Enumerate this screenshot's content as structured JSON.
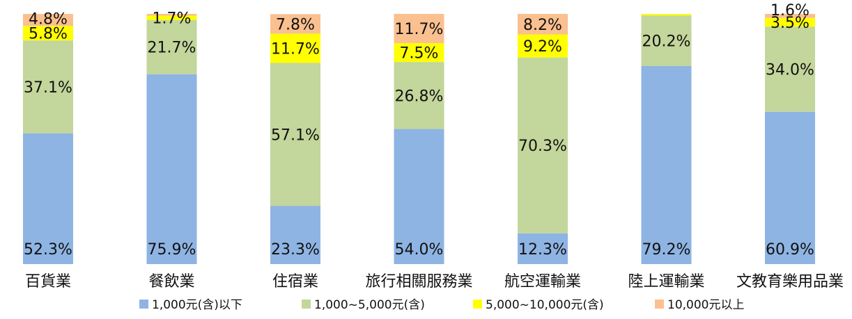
{
  "chart_data": {
    "type": "bar",
    "stacked": true,
    "percent_stacked": true,
    "categories": [
      "百貨業",
      "餐飲業",
      "住宿業",
      "旅行相關服務業",
      "航空運輸業",
      "陸上運輸業",
      "文教育樂用品業"
    ],
    "series": [
      {
        "name": "1,000元(含)以下",
        "color": "#8eb4e3",
        "values": [
          52.3,
          75.9,
          23.3,
          54.0,
          12.3,
          79.2,
          60.9
        ],
        "labels": [
          "52.3%",
          "75.9%",
          "23.3%",
          "54.0%",
          "12.3%",
          "79.2%",
          "60.9%"
        ]
      },
      {
        "name": "1,000~5,000元(含)",
        "color": "#c3d69b",
        "values": [
          37.1,
          21.7,
          57.1,
          26.8,
          70.3,
          20.2,
          34.0
        ],
        "labels": [
          "37.1%",
          "21.7%",
          "57.1%",
          "26.8%",
          "70.3%",
          "20.2%",
          "34.0%"
        ]
      },
      {
        "name": "5,000~10,000元(含)",
        "color": "#ffff00",
        "values": [
          5.8,
          1.7,
          11.7,
          7.5,
          9.2,
          0.6,
          3.5
        ],
        "labels": [
          "5.8%",
          "1.7%",
          "11.7%",
          "7.5%",
          "9.2%",
          "",
          "3.5%"
        ]
      },
      {
        "name": "10,000元以上",
        "color": "#fac090",
        "values": [
          4.8,
          0.7,
          7.8,
          11.7,
          8.2,
          0.0,
          1.6
        ],
        "labels": [
          "4.8%",
          "",
          "7.8%",
          "11.7%",
          "8.2%",
          "",
          "1.6%"
        ]
      }
    ],
    "ylim": [
      0,
      100
    ],
    "legend_position": "bottom",
    "grid": false
  }
}
